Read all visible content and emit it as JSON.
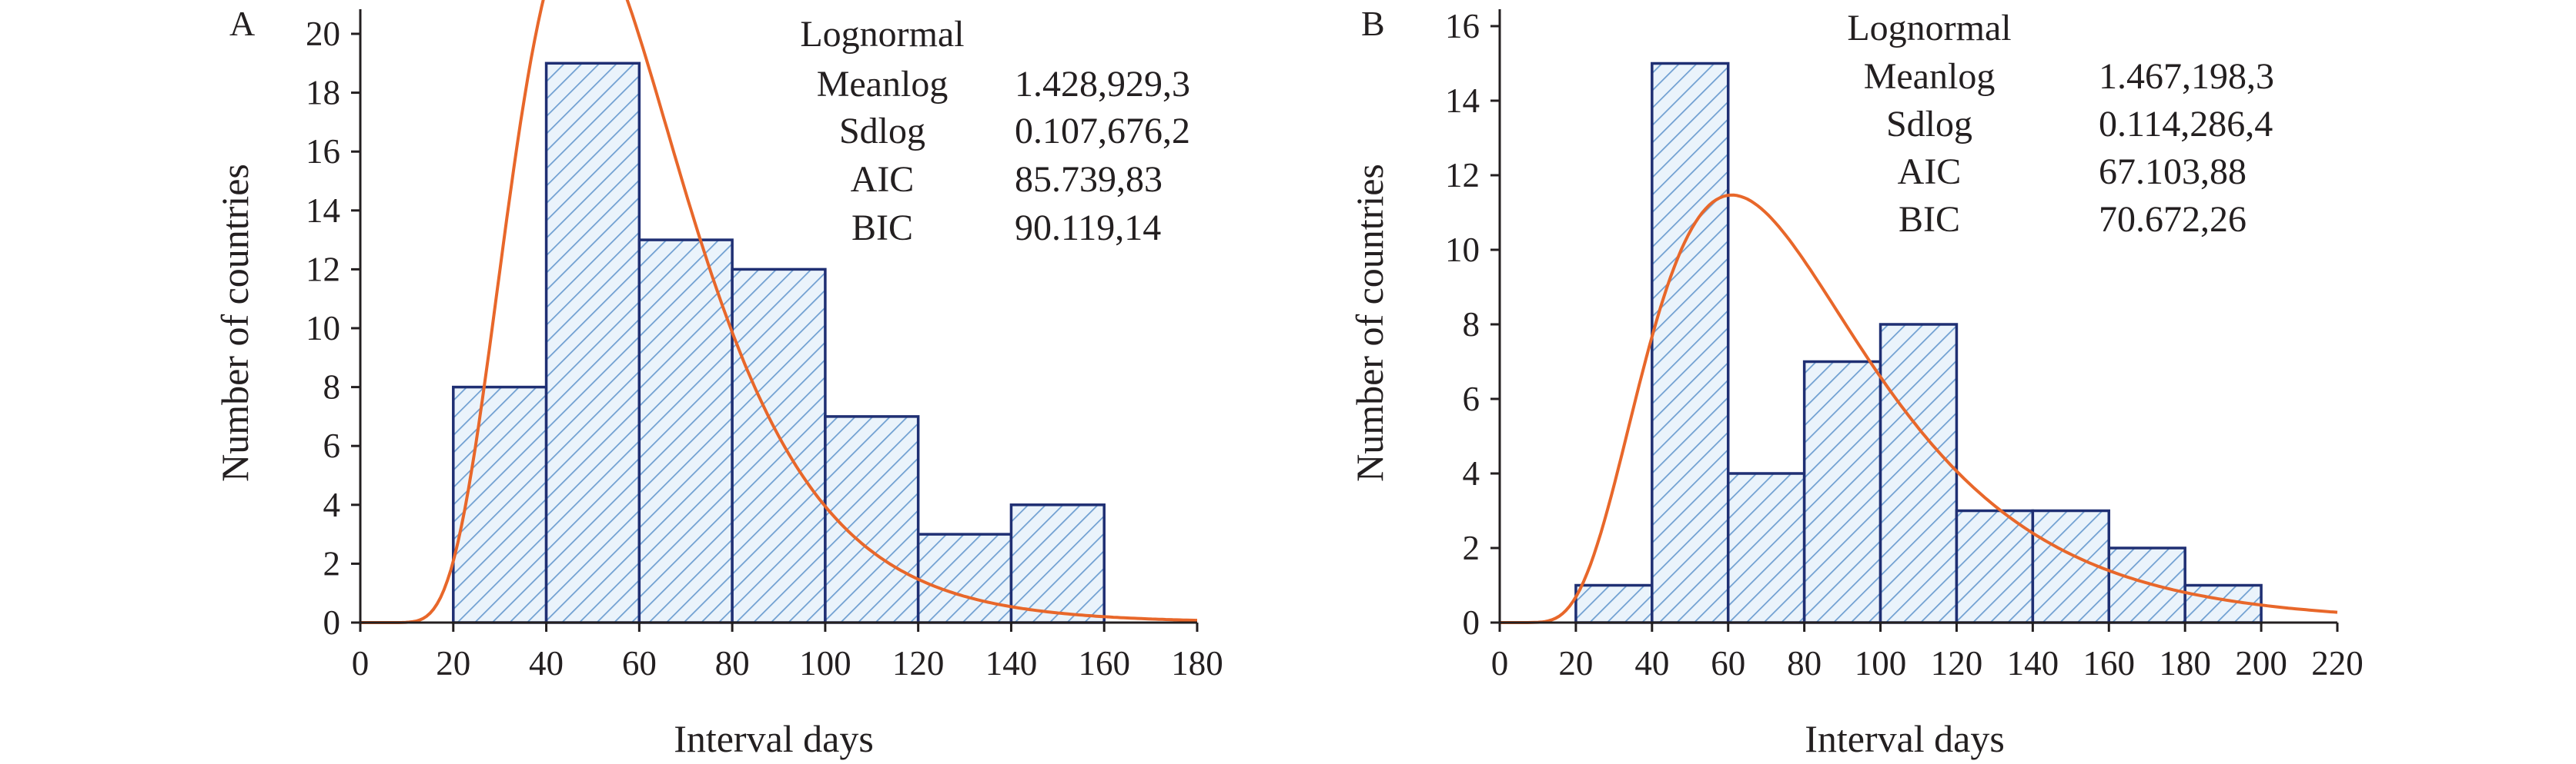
{
  "chart_data": [
    {
      "type": "bar",
      "panel": "A",
      "xlabel": "Interval days",
      "ylabel": "Number of countries",
      "xlim": [
        0,
        180
      ],
      "ylim": [
        0,
        20
      ],
      "xticks": [
        0,
        20,
        40,
        60,
        80,
        100,
        120,
        140,
        160,
        180
      ],
      "yticks": [
        0,
        2,
        4,
        6,
        8,
        10,
        12,
        14,
        16,
        18,
        20
      ],
      "bins": [
        [
          20,
          40
        ],
        [
          40,
          60
        ],
        [
          60,
          80
        ],
        [
          80,
          100
        ],
        [
          100,
          120
        ],
        [
          120,
          140
        ],
        [
          140,
          160
        ]
      ],
      "values": [
        8,
        19,
        13,
        12,
        7,
        3,
        4
      ],
      "fit": {
        "distribution": "lognormal",
        "meanlog_ln": 4.0156,
        "sdlog_ln": 0.3926,
        "scale_count": 1200
      },
      "stats": {
        "title": "Lognormal",
        "rows": [
          {
            "label": "Meanlog",
            "value": "1.428,929,3"
          },
          {
            "label": "Sdlog",
            "value": "0.107,676,2"
          },
          {
            "label": "AIC",
            "value": "85.739,83"
          },
          {
            "label": "BIC",
            "value": "90.119,14"
          }
        ]
      },
      "colors": {
        "bar_edge": "#1f2f73",
        "hatch": "#6f9fd1",
        "curve": "#e8672a"
      }
    },
    {
      "type": "bar",
      "panel": "B",
      "xlabel": "Interval days",
      "ylabel": "Number of countries",
      "xlim": [
        0,
        220
      ],
      "ylim": [
        0,
        16
      ],
      "xticks": [
        0,
        20,
        40,
        60,
        80,
        100,
        120,
        140,
        160,
        180,
        200,
        220
      ],
      "yticks": [
        0,
        2,
        4,
        6,
        8,
        10,
        12,
        14,
        16
      ],
      "bins": [
        [
          20,
          40
        ],
        [
          40,
          60
        ],
        [
          60,
          80
        ],
        [
          80,
          100
        ],
        [
          100,
          120
        ],
        [
          120,
          140
        ],
        [
          140,
          160
        ],
        [
          160,
          180
        ],
        [
          180,
          200
        ]
      ],
      "values": [
        1,
        15,
        4,
        7,
        8,
        3,
        3,
        2,
        1
      ],
      "fit": {
        "distribution": "lognormal",
        "meanlog_ln": 4.3313,
        "sdlog_ln": 0.47,
        "scale_count": 920
      },
      "stats": {
        "title": "Lognormal",
        "rows": [
          {
            "label": "Meanlog",
            "value": "1.467,198,3"
          },
          {
            "label": "Sdlog",
            "value": "0.114,286,4"
          },
          {
            "label": "AIC",
            "value": "67.103,88"
          },
          {
            "label": "BIC",
            "value": "70.672,26"
          }
        ]
      },
      "colors": {
        "bar_edge": "#1f2f73",
        "hatch": "#6f9fd1",
        "curve": "#e8672a"
      }
    }
  ]
}
